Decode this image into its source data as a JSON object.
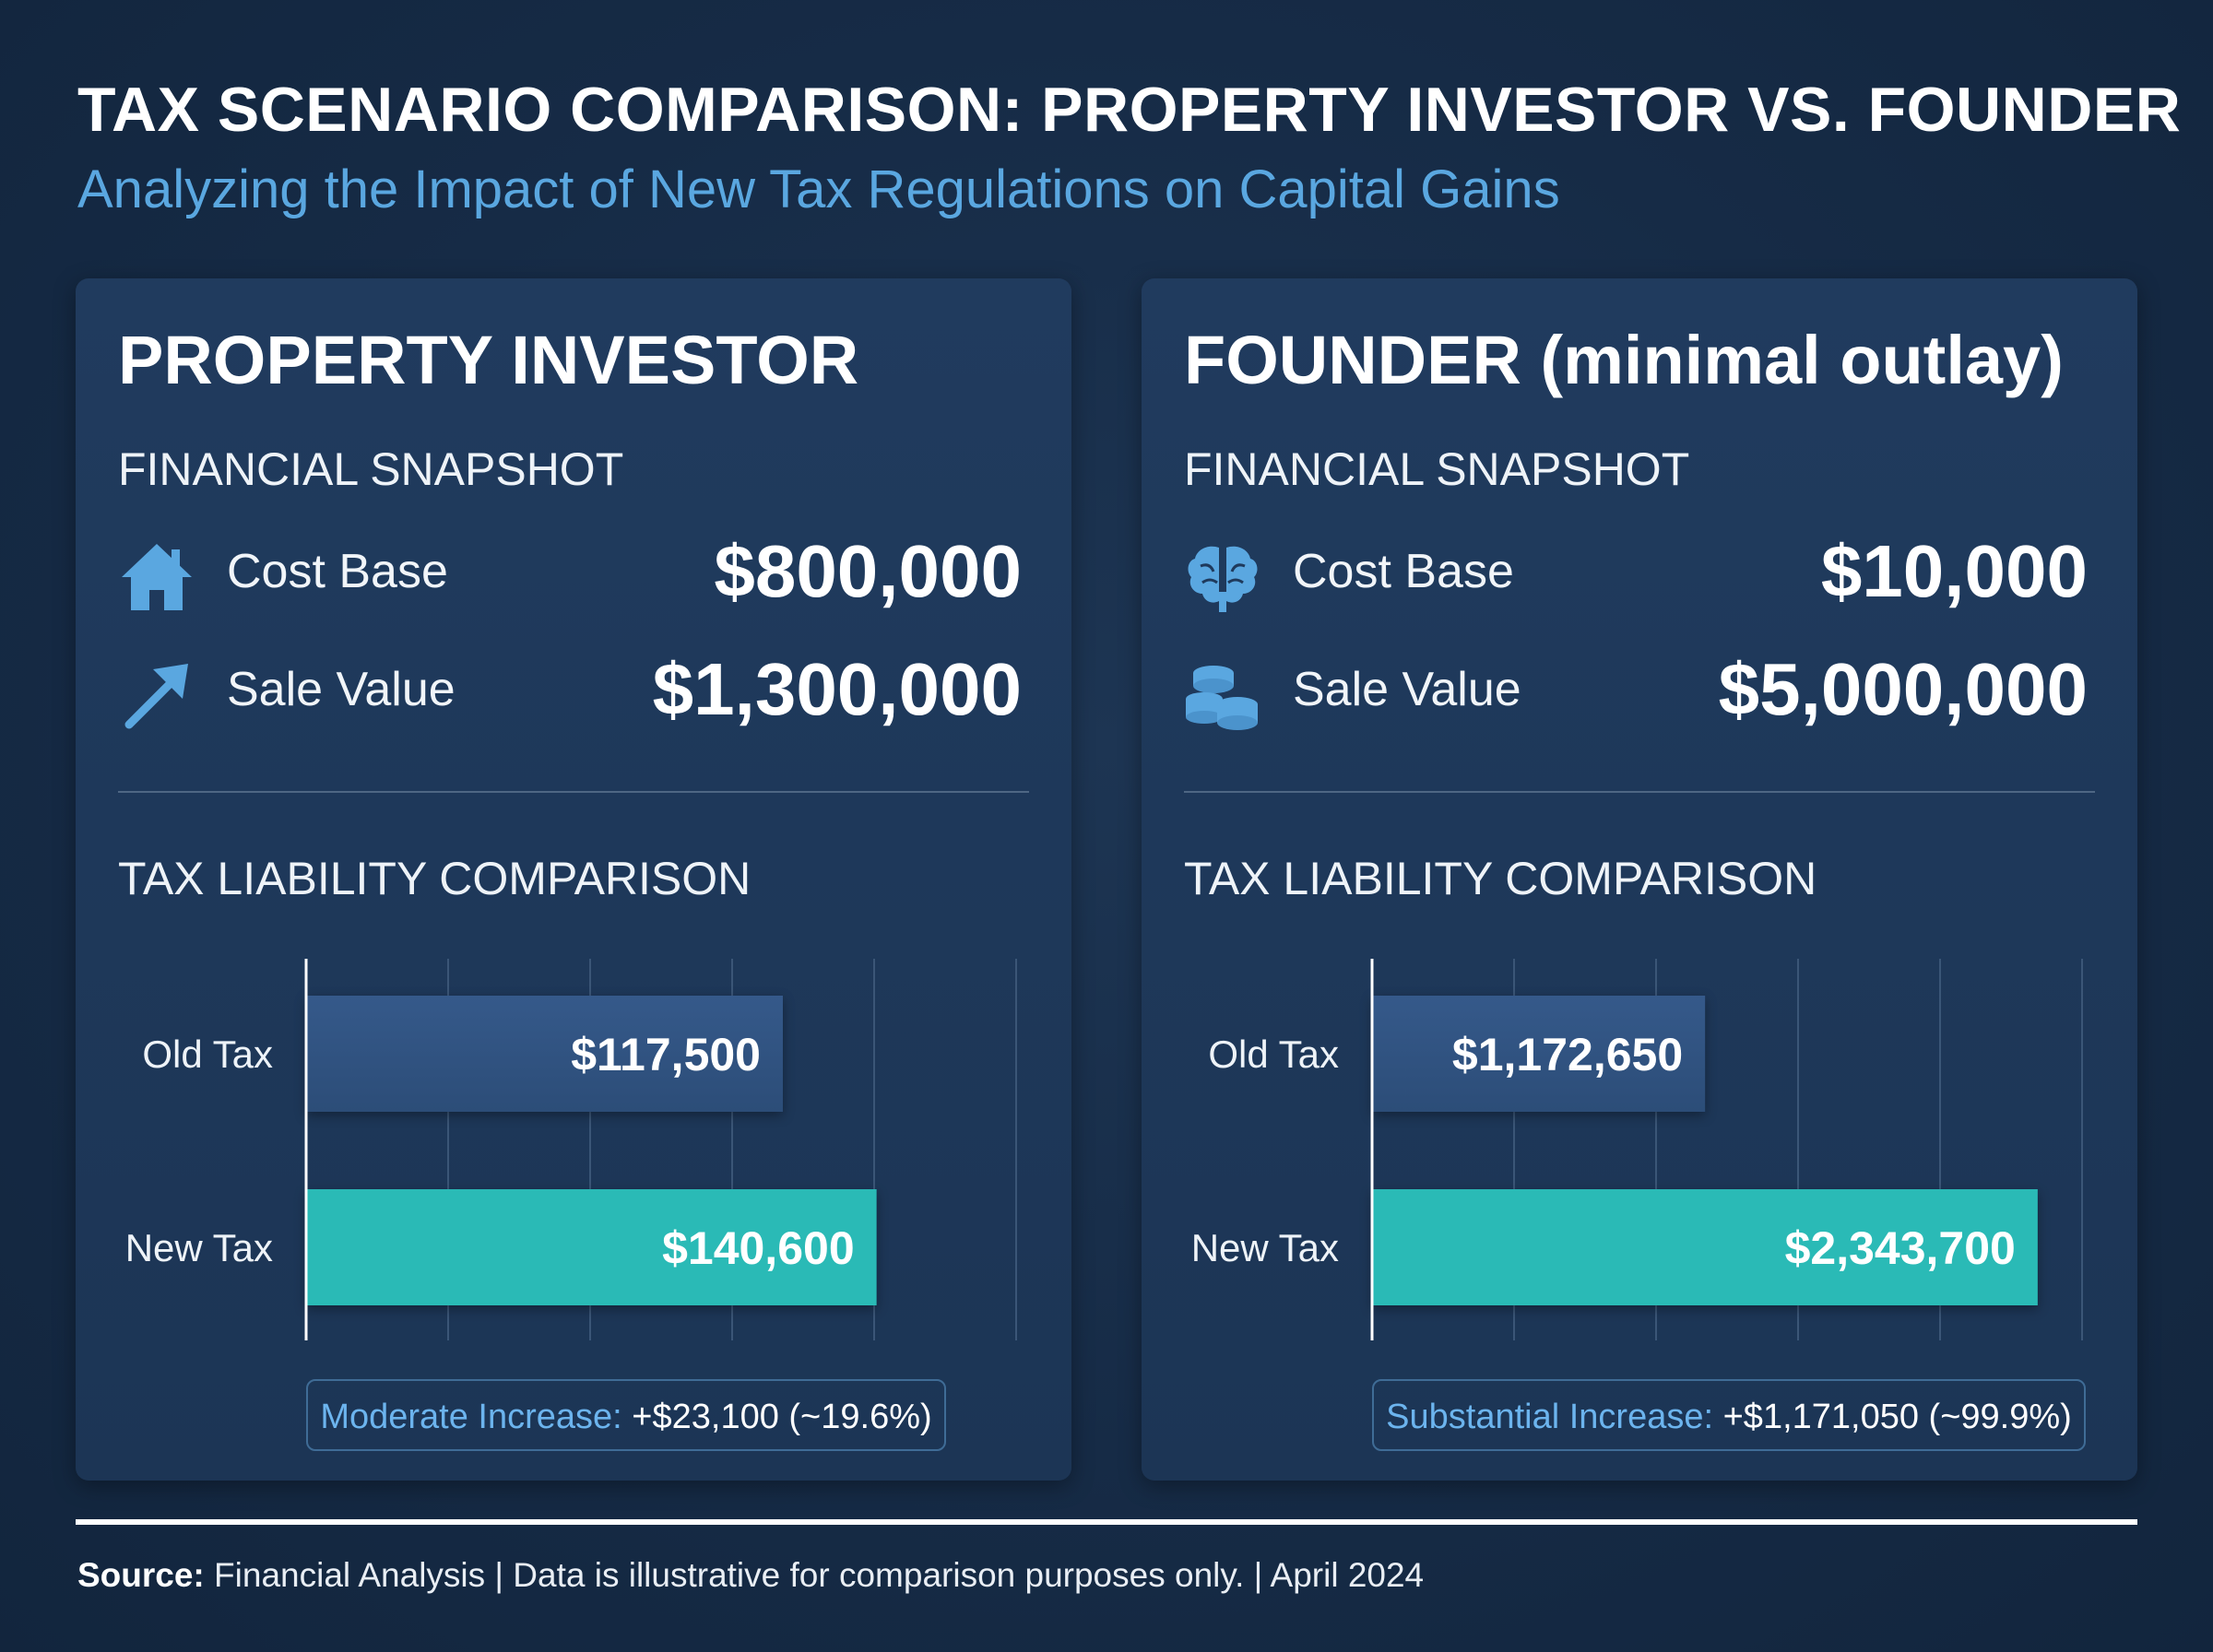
{
  "title": "TAX SCENARIO COMPARISON: PROPERTY INVESTOR VS. FOUNDER",
  "subtitle": "Analyzing the Impact of New Tax Regulations on Capital Gains",
  "colors": {
    "accent_blue": "#5aa7e0",
    "old_tax_bar": "#2c4d78",
    "new_tax_bar": "#2abab6"
  },
  "panels": [
    {
      "title": "PROPERTY INVESTOR",
      "snapshot_label": "FINANCIAL SNAPSHOT",
      "metrics": [
        {
          "icon": "house-icon",
          "label": "Cost Base",
          "value": "$800,000"
        },
        {
          "icon": "arrow-up-right-icon",
          "label": "Sale Value",
          "value": "$1,300,000"
        }
      ],
      "tax_label": "TAX LIABILITY COMPARISON",
      "note": {
        "head": "Moderate Increase:",
        "text": " +$23,100 (~19.6%)"
      }
    },
    {
      "title": "FOUNDER (minimal outlay)",
      "snapshot_label": "FINANCIAL SNAPSHOT",
      "metrics": [
        {
          "icon": "brain-icon",
          "label": "Cost Base",
          "value": "$10,000"
        },
        {
          "icon": "coins-icon",
          "label": "Sale Value",
          "value": "$5,000,000"
        }
      ],
      "tax_label": "TAX LIABILITY COMPARISON",
      "note": {
        "head": "Substantial Increase:",
        "text": " +$1,171,050 (~99.9%)"
      }
    }
  ],
  "chart_data": [
    {
      "type": "bar",
      "orientation": "horizontal",
      "categories": [
        "Old Tax",
        "New Tax"
      ],
      "values": [
        117500,
        140600
      ],
      "data_labels": [
        "$117,500",
        "$140,600"
      ],
      "xlim": [
        0,
        175000
      ],
      "grid": true,
      "title": "TAX LIABILITY COMPARISON"
    },
    {
      "type": "bar",
      "orientation": "horizontal",
      "categories": [
        "Old Tax",
        "New Tax"
      ],
      "values": [
        1172650,
        2343700
      ],
      "data_labels": [
        "$1,172,650",
        "$2,343,700"
      ],
      "xlim": [
        0,
        2500000
      ],
      "grid": true,
      "title": "TAX LIABILITY COMPARISON"
    }
  ],
  "footer": {
    "source_label": "Source:",
    "source_text": " Financial Analysis | Data is illustrative for comparison purposes only. | April 2024"
  }
}
